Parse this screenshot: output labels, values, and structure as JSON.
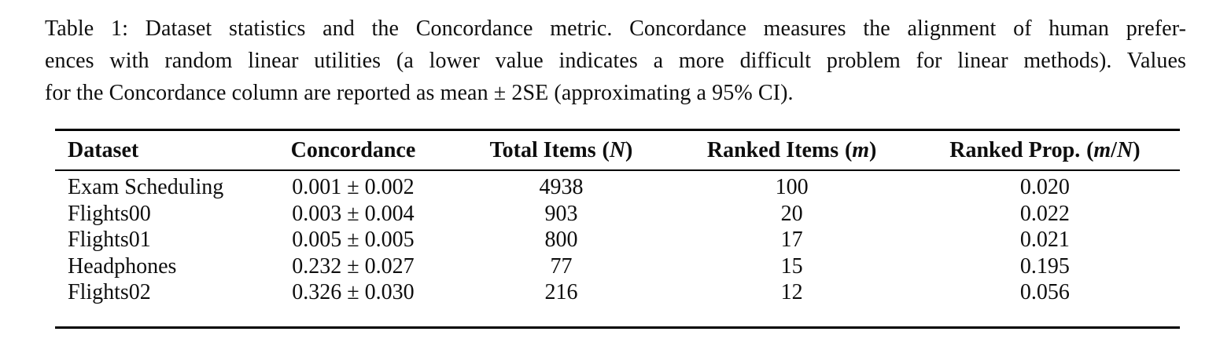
{
  "page": {
    "background_color": "#ffffff",
    "text_color": "#0e0e0e"
  },
  "caption": {
    "label": "Table 1:",
    "lines": [
      "Table 1: Dataset statistics and the Concordance metric. Concordance measures the alignment of human prefer-",
      "ences with random linear utilities (a lower value indicates a more difficult problem for linear methods). Values",
      "for the Concordance column are reported as mean ± 2SE (approximating a 95% CI)."
    ]
  },
  "table": {
    "columns": [
      {
        "label": "Dataset",
        "math": ""
      },
      {
        "label": "Concordance",
        "math": ""
      },
      {
        "label": "Total Items",
        "math": "(N)"
      },
      {
        "label": "Ranked Items",
        "math": "(m)"
      },
      {
        "label": "Ranked Prop.",
        "math": "(m/N)"
      }
    ],
    "rows": [
      [
        "Exam Scheduling",
        "0.001 ± 0.002",
        "4938",
        "100",
        "0.020"
      ],
      [
        "Flights00",
        "0.003 ± 0.004",
        "903",
        "20",
        "0.022"
      ],
      [
        "Flights01",
        "0.005 ± 0.005",
        "800",
        "17",
        "0.021"
      ],
      [
        "Headphones",
        "0.232 ± 0.027",
        "77",
        "15",
        "0.195"
      ],
      [
        "Flights02",
        "0.326 ± 0.030",
        "216",
        "12",
        "0.056"
      ]
    ]
  }
}
